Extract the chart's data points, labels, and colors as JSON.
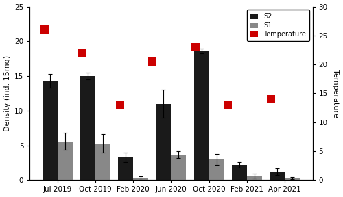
{
  "categories": [
    "Jul 2019",
    "Oct 2019",
    "Feb 2020",
    "Jun 2020",
    "Oct 2020",
    "Feb 2021",
    "Apr 2021"
  ],
  "s2_values": [
    14.3,
    15.0,
    3.3,
    11.0,
    18.6,
    2.2,
    1.2
  ],
  "s2_errors": [
    1.0,
    0.5,
    0.7,
    2.0,
    0.3,
    0.4,
    0.5
  ],
  "s1_values": [
    5.6,
    5.3,
    0.3,
    3.7,
    3.0,
    0.6,
    0.3
  ],
  "s1_errors": [
    1.2,
    1.3,
    0.25,
    0.5,
    0.8,
    0.35,
    0.15
  ],
  "temperature": [
    26.0,
    22.0,
    13.0,
    20.5,
    23.0,
    13.0,
    14.0
  ],
  "temp_x_positions": [
    -0.35,
    0.65,
    1.65,
    2.5,
    3.65,
    4.5,
    5.65
  ],
  "s2_color": "#1a1a1a",
  "s1_color": "#888888",
  "temp_color": "#cc0000",
  "bar_width": 0.4,
  "ylabel_left": "Density (ind. 15mq)",
  "ylabel_right": "Temperature",
  "ylim_left": [
    0,
    25
  ],
  "ylim_right": [
    0,
    30
  ],
  "yticks_left": [
    0,
    5,
    10,
    15,
    20,
    25
  ],
  "yticks_right": [
    0,
    5,
    10,
    15,
    20,
    25,
    30
  ],
  "legend_labels": [
    "S2",
    "S1",
    "Temperature"
  ],
  "temp_marker_size": 80,
  "figsize": [
    5.0,
    2.88
  ],
  "dpi": 100
}
